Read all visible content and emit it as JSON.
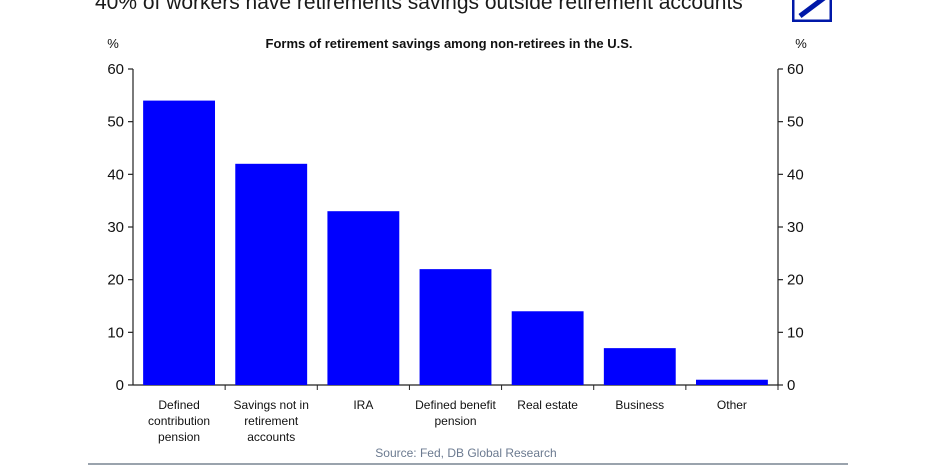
{
  "headline": "40% of workers have retirements savings outside retirement accounts",
  "brand_color": "#0018a8",
  "chart_data": {
    "type": "bar",
    "title": "Forms of retirement savings among non-retirees in the U.S.",
    "ylabel_left": "%",
    "ylabel_right": "%",
    "ylim": [
      0,
      60
    ],
    "yticks": [
      0,
      10,
      20,
      30,
      40,
      50,
      60
    ],
    "grid": false,
    "bar_color": "#0000ff",
    "categories": [
      "Defined contribution pension",
      "Savings not in retirement accounts",
      "IRA",
      "Defined benefit pension",
      "Real estate",
      "Business",
      "Other"
    ],
    "category_lines": [
      [
        "Defined",
        "contribution",
        "pension"
      ],
      [
        "Savings not in",
        "retirement",
        "accounts"
      ],
      [
        "IRA"
      ],
      [
        "Defined benefit",
        "pension"
      ],
      [
        "Real estate"
      ],
      [
        "Business"
      ],
      [
        "Other"
      ]
    ],
    "values": [
      54,
      42,
      33,
      22,
      14,
      7,
      1
    ]
  },
  "source": "Source: Fed, DB Global Research"
}
